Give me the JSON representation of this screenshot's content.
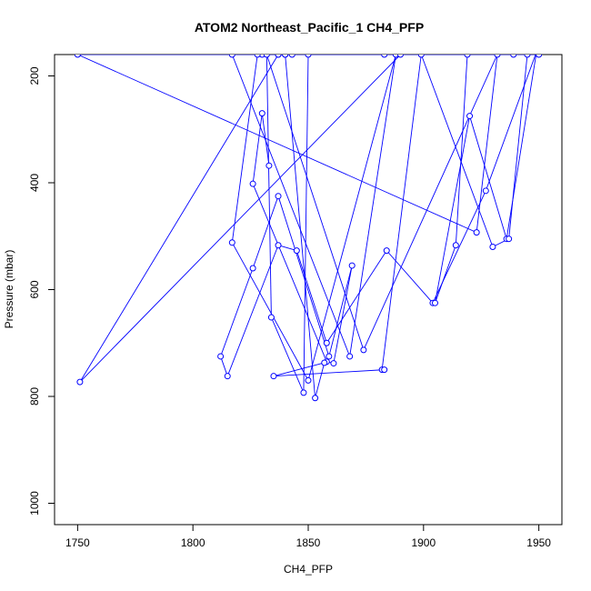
{
  "chart_data": {
    "type": "line",
    "title": "ATOM2 Northeast_Pacific_1 CH4_PFP",
    "xlabel": "CH4_PFP",
    "ylabel": "Pressure (mbar)",
    "xlim": [
      1740,
      1960
    ],
    "ylim": [
      1040,
      160
    ],
    "y_reversed": true,
    "xticks": [
      1750,
      1800,
      1850,
      1900,
      1950
    ],
    "yticks": [
      200,
      400,
      600,
      800,
      1000
    ],
    "grid": false,
    "series_color": "#0000ff",
    "series": [
      {
        "x": [
          1833,
          1830,
          1826,
          1858,
          1861,
          1869,
          1859,
          1837,
          1826,
          1812,
          1815,
          1837,
          1845,
          1858,
          1884,
          1904,
          1927,
          1949,
          1936,
          1920,
          1905,
          1914,
          1919,
          1939,
          1945,
          1937,
          1930,
          1899,
          1882,
          1883,
          1835,
          1857,
          1853,
          1840,
          1843,
          1830,
          1837,
          1828,
          1817,
          1850,
          1888,
          1868,
          1817,
          1883,
          1840,
          1837,
          1751,
          1890,
          1850,
          1848,
          1834,
          1832,
          1874,
          1932,
          1923,
          1750,
          1950
        ],
        "y": [
          368,
          270,
          402,
          735,
          738,
          555,
          725,
          425,
          560,
          725,
          762,
          517,
          527,
          700,
          527,
          625,
          415,
          155,
          505,
          275,
          625,
          517,
          160,
          160,
          160,
          505,
          520,
          160,
          750,
          750,
          762,
          737,
          803,
          160,
          160,
          160,
          160,
          160,
          512,
          770,
          160,
          725,
          160,
          160,
          160,
          160,
          773,
          160,
          160,
          793,
          652,
          160,
          713,
          160,
          493,
          160,
          160
        ]
      }
    ]
  }
}
